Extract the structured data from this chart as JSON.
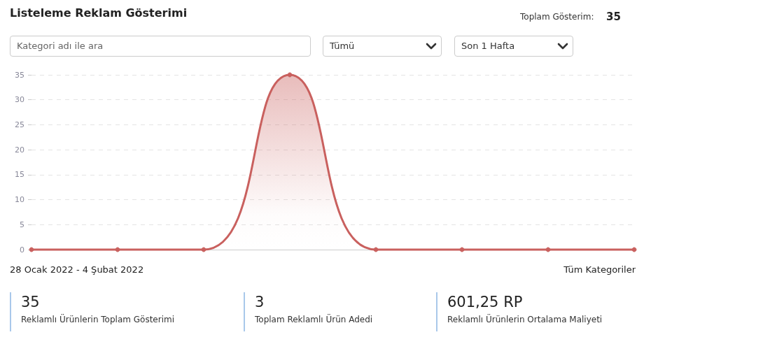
{
  "chart_data": {
    "type": "area",
    "title": "Listeleme Reklam Gösterimi",
    "categories": [
      null,
      null,
      null,
      null,
      null,
      null,
      null,
      null
    ],
    "values": [
      0,
      0,
      0,
      35,
      0,
      0,
      0,
      0
    ],
    "color": "#c9605e",
    "ylim": [
      0,
      35
    ],
    "yticks": [
      0,
      5,
      10,
      15,
      20,
      25,
      30,
      35
    ],
    "grid": "y",
    "marker": "circle",
    "line_style": "solid",
    "tick_labels": "y",
    "annotations": [
      "Toplam Gösterim:",
      "35",
      "Kategori adı ile ara",
      "Tümü",
      "Son 1 Hafta",
      "28 Ocak 2022 - 4 Şubat 2022",
      "Tüm Kategoriler",
      "35",
      "Reklamlı Ürünlerin Toplam Gösterimi",
      "3",
      "Toplam Reklamlı Ürün Adedi",
      "601,25 RP",
      "Reklamlı Ürünlerin Ortalama Maliyeti"
    ]
  }
}
